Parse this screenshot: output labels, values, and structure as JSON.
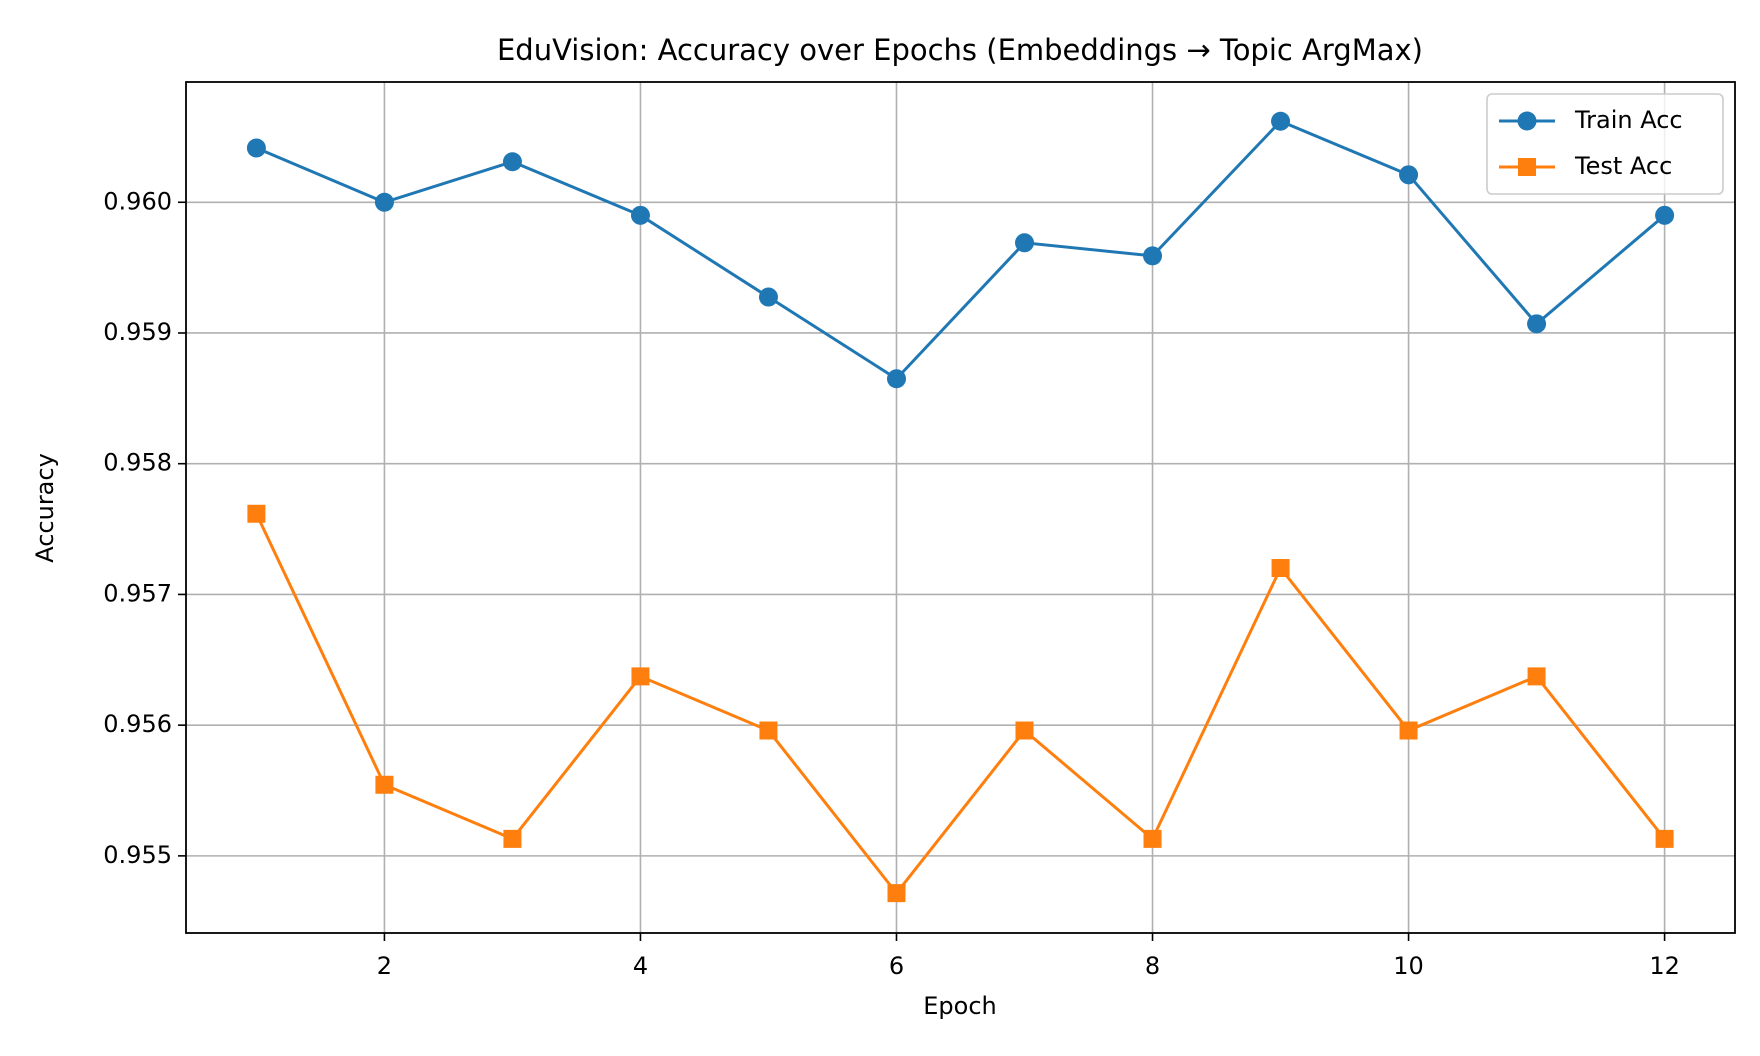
{
  "chart_data": {
    "type": "line",
    "title": "EduVision: Accuracy over Epochs (Embeddings → Topic ArgMax)",
    "x_label": "Epoch",
    "y_label": "Accuracy",
    "x": [
      1,
      2,
      3,
      4,
      5,
      6,
      7,
      8,
      9,
      10,
      11,
      12
    ],
    "series": [
      {
        "name": "Train Acc",
        "color": "#1f77b4",
        "marker": "circle",
        "values": [
          0.960415,
          0.96,
          0.96031,
          0.9599,
          0.959275,
          0.95865,
          0.95969,
          0.95959,
          0.96062,
          0.96021,
          0.95907,
          0.9599
        ]
      },
      {
        "name": "Test Acc",
        "color": "#ff7f0e",
        "marker": "square",
        "values": [
          0.957617,
          0.955544,
          0.95513,
          0.956373,
          0.955959,
          0.954715,
          0.955959,
          0.95513,
          0.957202,
          0.955959,
          0.956373,
          0.95513
        ]
      }
    ],
    "xlim": [
      0.45,
      12.55
    ],
    "ylim": [
      0.95441,
      0.96092
    ],
    "xticks": [
      2,
      4,
      6,
      8,
      10,
      12
    ],
    "yticks": [
      0.955,
      0.956,
      0.957,
      0.958,
      0.959,
      {
        "value": 0.96,
        "label": "0.960"
      }
    ],
    "grid": true,
    "legend": "upper right"
  }
}
